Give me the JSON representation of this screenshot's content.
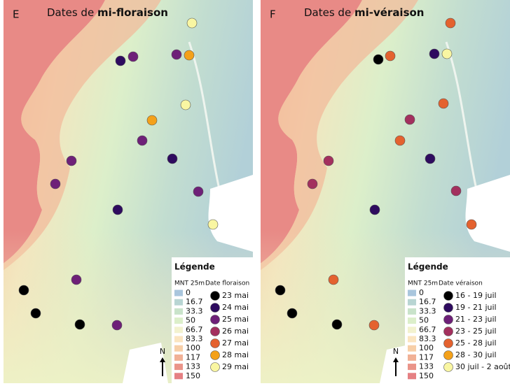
{
  "panels": [
    {
      "letter": "E",
      "title_prefix": "Dates de",
      "title_bold": "mi-floraison",
      "legend": {
        "title": "Légende",
        "dem_label": "MNT 25m",
        "date_label": "Date floraison",
        "dem_classes": [
          {
            "label": "0",
            "color": "#a9c6dd"
          },
          {
            "label": "16.7",
            "color": "#b8d5d3"
          },
          {
            "label": "33.3",
            "color": "#c9e3ca"
          },
          {
            "label": "50",
            "color": "#dcefca"
          },
          {
            "label": "66.7",
            "color": "#f3f2cf"
          },
          {
            "label": "83.3",
            "color": "#fbe5c0"
          },
          {
            "label": "100",
            "color": "#f7cfa8"
          },
          {
            "label": "117",
            "color": "#f1b196"
          },
          {
            "label": "133",
            "color": "#ea9489"
          },
          {
            "label": "150",
            "color": "#e58083"
          }
        ],
        "date_classes": [
          {
            "label": "23 mai",
            "color": "#000000"
          },
          {
            "label": "24 mai",
            "color": "#2e0b5f"
          },
          {
            "label": "25 mai",
            "color": "#6e2078"
          },
          {
            "label": "26 mai",
            "color": "#a3305e"
          },
          {
            "label": "27 mai",
            "color": "#e4622f"
          },
          {
            "label": "28 mai",
            "color": "#f4a11a"
          },
          {
            "label": "29 mai",
            "color": "#f9f6a2"
          }
        ]
      },
      "north": "N"
    },
    {
      "letter": "F",
      "title_prefix": "Dates de",
      "title_bold": "mi-véraison",
      "legend": {
        "title": "Légende",
        "dem_label": "MNT 25m",
        "date_label": "Date véraison",
        "dem_classes": [
          {
            "label": "0",
            "color": "#a9c6dd"
          },
          {
            "label": "16.7",
            "color": "#b8d5d3"
          },
          {
            "label": "33.3",
            "color": "#c9e3ca"
          },
          {
            "label": "50",
            "color": "#dcefca"
          },
          {
            "label": "66.7",
            "color": "#f3f2cf"
          },
          {
            "label": "83.3",
            "color": "#fbe5c0"
          },
          {
            "label": "100",
            "color": "#f7cfa8"
          },
          {
            "label": "117",
            "color": "#f1b196"
          },
          {
            "label": "133",
            "color": "#ea9489"
          },
          {
            "label": "150",
            "color": "#e58083"
          }
        ],
        "date_classes": [
          {
            "label": "16 - 19 juil",
            "color": "#000000"
          },
          {
            "label": "19 - 21 juil",
            "color": "#2e0b5f"
          },
          {
            "label": "21 - 23 juil",
            "color": "#6e2078"
          },
          {
            "label": "23 - 25 juil",
            "color": "#a3305e"
          },
          {
            "label": "25 - 28 juil",
            "color": "#e4622f"
          },
          {
            "label": "28 - 30 juil",
            "color": "#f4a11a"
          },
          {
            "label": "30 juil - 2 août",
            "color": "#f9f6a2"
          }
        ]
      },
      "north": "N"
    }
  ]
}
